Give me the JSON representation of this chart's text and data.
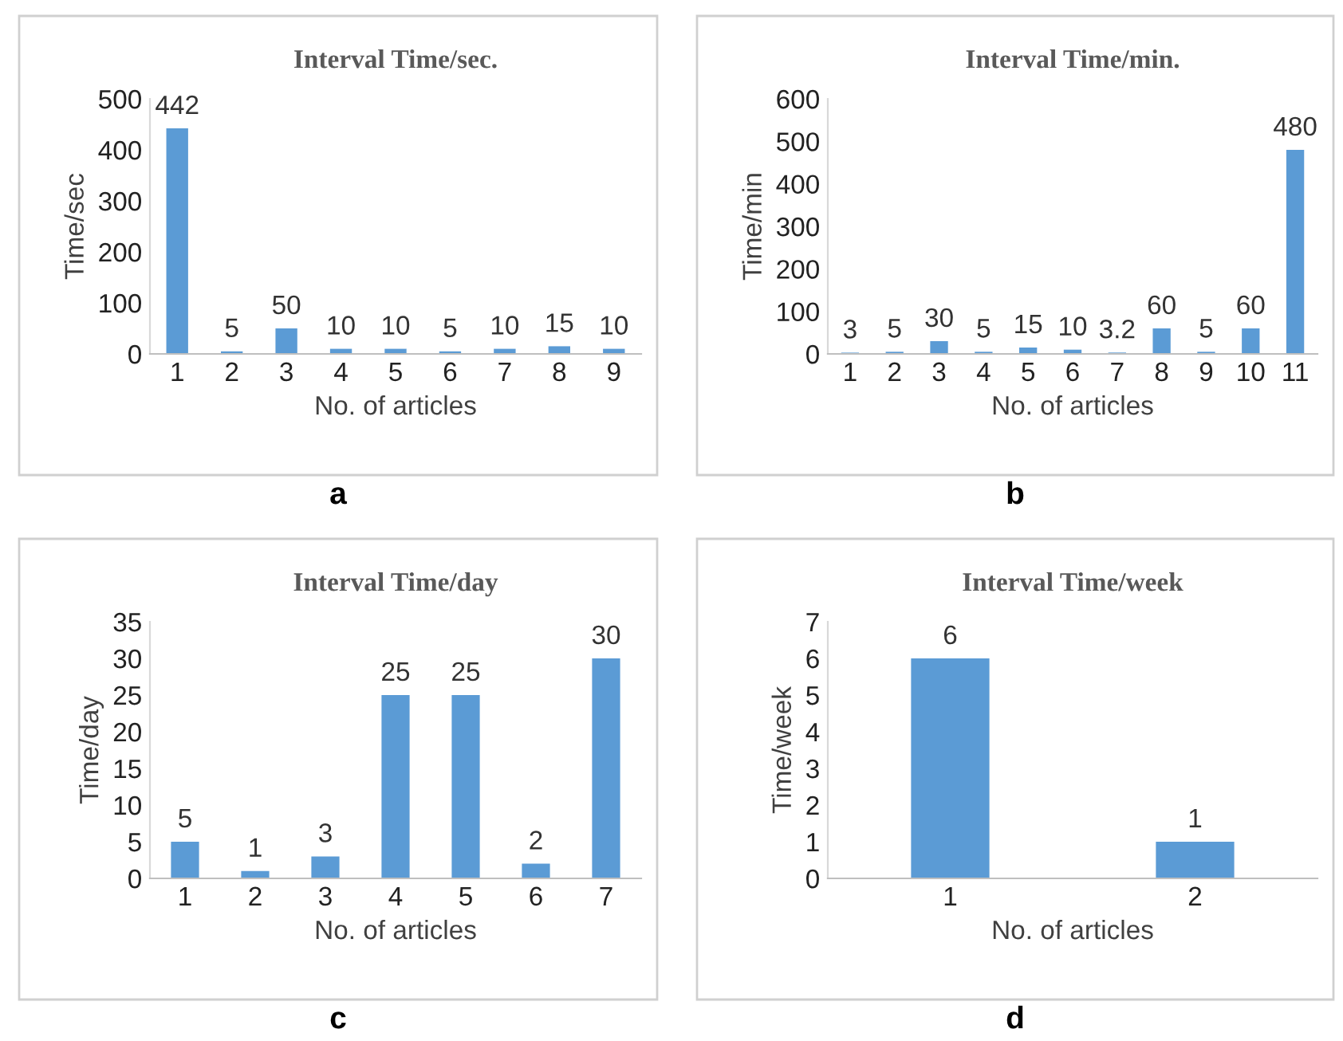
{
  "chart_data": [
    {
      "type": "bar",
      "title": "Interval Time/sec.",
      "xlabel": "No. of articles",
      "ylabel": "Time/sec",
      "categories": [
        "1",
        "2",
        "3",
        "4",
        "5",
        "6",
        "7",
        "8",
        "9"
      ],
      "values": [
        442,
        5,
        50,
        10,
        10,
        5,
        10,
        15,
        10
      ],
      "color": "#5b9bd5",
      "ylim": [
        0,
        500
      ],
      "yticks": [
        0,
        100,
        200,
        300,
        400,
        500
      ],
      "data_labels": true,
      "grid": false,
      "annotations": [
        "a"
      ]
    },
    {
      "type": "bar",
      "title": "Interval Time/min.",
      "xlabel": "No. of articles",
      "ylabel": "Time/min",
      "categories": [
        "1",
        "2",
        "3",
        "4",
        "5",
        "6",
        "7",
        "8",
        "9",
        "10",
        "11"
      ],
      "values": [
        3,
        5,
        30,
        5,
        15,
        10,
        3.2,
        60,
        5,
        60,
        480
      ],
      "color": "#5b9bd5",
      "ylim": [
        0,
        600
      ],
      "yticks": [
        0,
        100,
        200,
        300,
        400,
        500,
        600
      ],
      "data_labels": true,
      "grid": false,
      "annotations": [
        "b"
      ]
    },
    {
      "type": "bar",
      "title": "Interval Time/day",
      "xlabel": "No. of articles",
      "ylabel": "Time/day",
      "categories": [
        "1",
        "2",
        "3",
        "4",
        "5",
        "6",
        "7"
      ],
      "values": [
        5,
        1,
        3,
        25,
        25,
        2,
        30
      ],
      "color": "#5b9bd5",
      "ylim": [
        0,
        35
      ],
      "yticks": [
        0,
        5,
        10,
        15,
        20,
        25,
        30,
        35
      ],
      "data_labels": true,
      "grid": false,
      "annotations": [
        "c"
      ]
    },
    {
      "type": "bar",
      "title": "Interval Time/week",
      "xlabel": "No. of articles",
      "ylabel": "Time/week",
      "categories": [
        "1",
        "2"
      ],
      "values": [
        6,
        1
      ],
      "color": "#5b9bd5",
      "ylim": [
        0,
        7
      ],
      "yticks": [
        0,
        1,
        2,
        3,
        4,
        5,
        6,
        7
      ],
      "data_labels": true,
      "grid": false,
      "annotations": [
        "d"
      ]
    }
  ]
}
